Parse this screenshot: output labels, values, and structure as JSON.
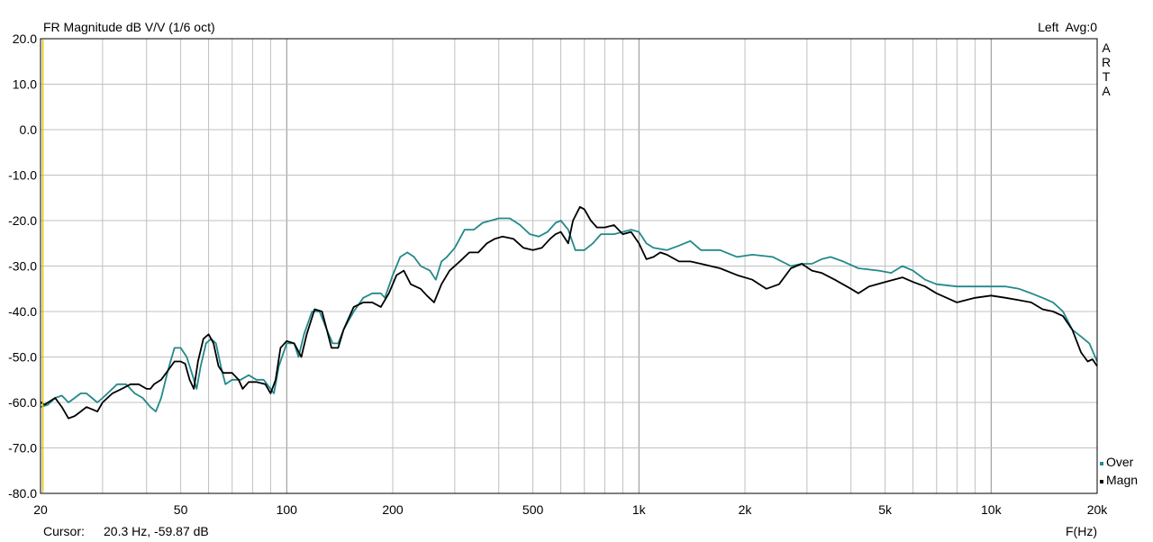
{
  "chart_data": {
    "type": "line",
    "title": "FR Magnitude dB V/V (1/6 oct)",
    "top_right_label": "Left  Avg:0",
    "watermark": [
      "A",
      "R",
      "T",
      "A"
    ],
    "xlabel": "F(Hz)",
    "ylabel": "",
    "x_scale": "log",
    "xlim": [
      20,
      20000
    ],
    "ylim": [
      -80,
      20
    ],
    "grid": true,
    "x_tick_labels": [
      {
        "v": 20,
        "t": "20"
      },
      {
        "v": 50,
        "t": "50"
      },
      {
        "v": 100,
        "t": "100"
      },
      {
        "v": 200,
        "t": "200"
      },
      {
        "v": 500,
        "t": "500"
      },
      {
        "v": 1000,
        "t": "1k"
      },
      {
        "v": 2000,
        "t": "2k"
      },
      {
        "v": 5000,
        "t": "5k"
      },
      {
        "v": 10000,
        "t": "10k"
      },
      {
        "v": 20000,
        "t": "20k"
      }
    ],
    "y_tick_labels": [
      {
        "v": 20,
        "t": "20.0"
      },
      {
        "v": 10,
        "t": "10.0"
      },
      {
        "v": 0,
        "t": "0.0"
      },
      {
        "v": -10,
        "t": "-10.0"
      },
      {
        "v": -20,
        "t": "-20.0"
      },
      {
        "v": -30,
        "t": "-30.0"
      },
      {
        "v": -40,
        "t": "-40.0"
      },
      {
        "v": -50,
        "t": "-50.0"
      },
      {
        "v": -60,
        "t": "-60.0"
      },
      {
        "v": -70,
        "t": "-70.0"
      },
      {
        "v": -80,
        "t": "-80.0"
      }
    ],
    "cursor_label": "Cursor:",
    "cursor_value": "20.3 Hz, -59.87 dB",
    "legend_position": "bottom-right",
    "colors": {
      "grid": "#c0c0c0",
      "major_grid": "#8c8c8c",
      "cursor": "#e6c200"
    },
    "series": [
      {
        "name": "Over",
        "color": "#23898a",
        "points": [
          [
            20,
            -61
          ],
          [
            21,
            -60.5
          ],
          [
            22,
            -59
          ],
          [
            23,
            -58.5
          ],
          [
            24,
            -60
          ],
          [
            25,
            -59
          ],
          [
            26,
            -58
          ],
          [
            27,
            -58
          ],
          [
            28,
            -59
          ],
          [
            29,
            -60
          ],
          [
            30,
            -59
          ],
          [
            31,
            -58
          ],
          [
            33,
            -56
          ],
          [
            35,
            -56
          ],
          [
            37,
            -58
          ],
          [
            39,
            -59
          ],
          [
            41,
            -61
          ],
          [
            42.5,
            -62
          ],
          [
            44,
            -59
          ],
          [
            46,
            -53
          ],
          [
            48,
            -48
          ],
          [
            50,
            -48
          ],
          [
            52,
            -50
          ],
          [
            54,
            -54
          ],
          [
            55.5,
            -57
          ],
          [
            57,
            -52
          ],
          [
            59,
            -47
          ],
          [
            61,
            -46
          ],
          [
            63,
            -47
          ],
          [
            65,
            -52
          ],
          [
            67,
            -56
          ],
          [
            70,
            -55
          ],
          [
            74,
            -55
          ],
          [
            78,
            -54
          ],
          [
            82,
            -55
          ],
          [
            86,
            -55
          ],
          [
            90,
            -57
          ],
          [
            92,
            -58
          ],
          [
            95,
            -52
          ],
          [
            100,
            -47
          ],
          [
            105,
            -47
          ],
          [
            108,
            -50
          ],
          [
            112,
            -45
          ],
          [
            118,
            -40
          ],
          [
            124,
            -40
          ],
          [
            130,
            -44
          ],
          [
            135,
            -47
          ],
          [
            140,
            -47
          ],
          [
            145,
            -44
          ],
          [
            155,
            -40
          ],
          [
            165,
            -37
          ],
          [
            175,
            -36
          ],
          [
            185,
            -36
          ],
          [
            190,
            -37
          ],
          [
            200,
            -32
          ],
          [
            210,
            -28
          ],
          [
            220,
            -27
          ],
          [
            230,
            -28
          ],
          [
            240,
            -30
          ],
          [
            255,
            -31
          ],
          [
            265,
            -33
          ],
          [
            275,
            -29
          ],
          [
            285,
            -28
          ],
          [
            300,
            -26
          ],
          [
            320,
            -22
          ],
          [
            340,
            -22
          ],
          [
            360,
            -20.5
          ],
          [
            380,
            -20
          ],
          [
            400,
            -19.5
          ],
          [
            430,
            -19.5
          ],
          [
            460,
            -21
          ],
          [
            490,
            -23
          ],
          [
            520,
            -23.5
          ],
          [
            550,
            -22.5
          ],
          [
            580,
            -20.5
          ],
          [
            600,
            -20
          ],
          [
            630,
            -22
          ],
          [
            660,
            -26.5
          ],
          [
            700,
            -26.5
          ],
          [
            740,
            -25
          ],
          [
            780,
            -23
          ],
          [
            850,
            -23
          ],
          [
            900,
            -22.5
          ],
          [
            950,
            -22
          ],
          [
            1000,
            -22.5
          ],
          [
            1050,
            -25
          ],
          [
            1100,
            -26
          ],
          [
            1200,
            -26.5
          ],
          [
            1300,
            -25.5
          ],
          [
            1400,
            -24.5
          ],
          [
            1500,
            -26.5
          ],
          [
            1700,
            -26.5
          ],
          [
            1900,
            -28
          ],
          [
            2100,
            -27.5
          ],
          [
            2400,
            -28
          ],
          [
            2700,
            -30
          ],
          [
            2900,
            -29.5
          ],
          [
            3100,
            -29.5
          ],
          [
            3300,
            -28.5
          ],
          [
            3500,
            -28
          ],
          [
            3800,
            -29
          ],
          [
            4200,
            -30.5
          ],
          [
            4800,
            -31
          ],
          [
            5200,
            -31.5
          ],
          [
            5600,
            -30
          ],
          [
            6000,
            -31
          ],
          [
            6500,
            -33
          ],
          [
            7000,
            -34
          ],
          [
            8000,
            -34.5
          ],
          [
            9000,
            -34.5
          ],
          [
            10000,
            -34.5
          ],
          [
            11000,
            -34.5
          ],
          [
            12000,
            -35
          ],
          [
            13000,
            -36
          ],
          [
            14000,
            -37
          ],
          [
            15000,
            -38
          ],
          [
            16000,
            -40
          ],
          [
            17000,
            -44
          ],
          [
            18000,
            -45.5
          ],
          [
            19000,
            -47
          ],
          [
            20000,
            -51
          ]
        ]
      },
      {
        "name": "Magn",
        "color": "#000000",
        "points": [
          [
            20,
            -59.9
          ],
          [
            20.5,
            -60.5
          ],
          [
            21,
            -60
          ],
          [
            22,
            -59
          ],
          [
            23,
            -61
          ],
          [
            24,
            -63.5
          ],
          [
            25,
            -63
          ],
          [
            26,
            -62
          ],
          [
            27,
            -61
          ],
          [
            28,
            -61.5
          ],
          [
            29,
            -62
          ],
          [
            30,
            -60
          ],
          [
            32,
            -58
          ],
          [
            34,
            -57
          ],
          [
            36,
            -56
          ],
          [
            38,
            -56
          ],
          [
            40,
            -57
          ],
          [
            41,
            -57
          ],
          [
            42,
            -56
          ],
          [
            44,
            -55
          ],
          [
            46,
            -53
          ],
          [
            48,
            -51
          ],
          [
            50,
            -51
          ],
          [
            51.5,
            -51.5
          ],
          [
            53,
            -55
          ],
          [
            54.5,
            -57
          ],
          [
            56,
            -51
          ],
          [
            58,
            -46
          ],
          [
            60,
            -45
          ],
          [
            62,
            -47
          ],
          [
            64,
            -52
          ],
          [
            66,
            -53.5
          ],
          [
            70,
            -53.5
          ],
          [
            73,
            -55
          ],
          [
            75,
            -57
          ],
          [
            78,
            -55.5
          ],
          [
            82,
            -55.5
          ],
          [
            87,
            -56
          ],
          [
            90,
            -58
          ],
          [
            93,
            -55
          ],
          [
            96,
            -48
          ],
          [
            100,
            -46.5
          ],
          [
            105,
            -47
          ],
          [
            110,
            -50
          ],
          [
            114,
            -45
          ],
          [
            120,
            -39.5
          ],
          [
            126,
            -40
          ],
          [
            130,
            -44
          ],
          [
            134,
            -48
          ],
          [
            140,
            -48
          ],
          [
            145,
            -44
          ],
          [
            155,
            -39
          ],
          [
            165,
            -38
          ],
          [
            175,
            -38
          ],
          [
            185,
            -39
          ],
          [
            195,
            -36
          ],
          [
            205,
            -32
          ],
          [
            215,
            -31
          ],
          [
            225,
            -34
          ],
          [
            240,
            -35
          ],
          [
            250,
            -36.5
          ],
          [
            262,
            -38
          ],
          [
            275,
            -34
          ],
          [
            290,
            -31
          ],
          [
            310,
            -29
          ],
          [
            330,
            -27
          ],
          [
            350,
            -27
          ],
          [
            370,
            -25
          ],
          [
            390,
            -24
          ],
          [
            410,
            -23.5
          ],
          [
            440,
            -24
          ],
          [
            470,
            -26
          ],
          [
            500,
            -26.5
          ],
          [
            530,
            -26
          ],
          [
            560,
            -24
          ],
          [
            580,
            -23
          ],
          [
            600,
            -22.5
          ],
          [
            630,
            -25
          ],
          [
            650,
            -20
          ],
          [
            680,
            -17
          ],
          [
            700,
            -17.5
          ],
          [
            730,
            -20
          ],
          [
            760,
            -21.5
          ],
          [
            800,
            -21.5
          ],
          [
            850,
            -21
          ],
          [
            900,
            -23
          ],
          [
            950,
            -22.5
          ],
          [
            1000,
            -25
          ],
          [
            1050,
            -28.5
          ],
          [
            1100,
            -28
          ],
          [
            1150,
            -27
          ],
          [
            1200,
            -27.5
          ],
          [
            1300,
            -29
          ],
          [
            1400,
            -29
          ],
          [
            1500,
            -29.5
          ],
          [
            1700,
            -30.5
          ],
          [
            1900,
            -32
          ],
          [
            2100,
            -33
          ],
          [
            2300,
            -35
          ],
          [
            2500,
            -34
          ],
          [
            2700,
            -30.5
          ],
          [
            2900,
            -29.5
          ],
          [
            3100,
            -31
          ],
          [
            3300,
            -31.5
          ],
          [
            3600,
            -33
          ],
          [
            4000,
            -35
          ],
          [
            4200,
            -36
          ],
          [
            4500,
            -34.5
          ],
          [
            5000,
            -33.5
          ],
          [
            5600,
            -32.5
          ],
          [
            6000,
            -33.5
          ],
          [
            6500,
            -34.5
          ],
          [
            7000,
            -36
          ],
          [
            8000,
            -38
          ],
          [
            9000,
            -37
          ],
          [
            10000,
            -36.5
          ],
          [
            11000,
            -37
          ],
          [
            12000,
            -37.5
          ],
          [
            13000,
            -38
          ],
          [
            14000,
            -39.5
          ],
          [
            15000,
            -40
          ],
          [
            16000,
            -41
          ],
          [
            17000,
            -44
          ],
          [
            18000,
            -49
          ],
          [
            18800,
            -51
          ],
          [
            19400,
            -50.5
          ],
          [
            20000,
            -52
          ]
        ]
      }
    ]
  }
}
